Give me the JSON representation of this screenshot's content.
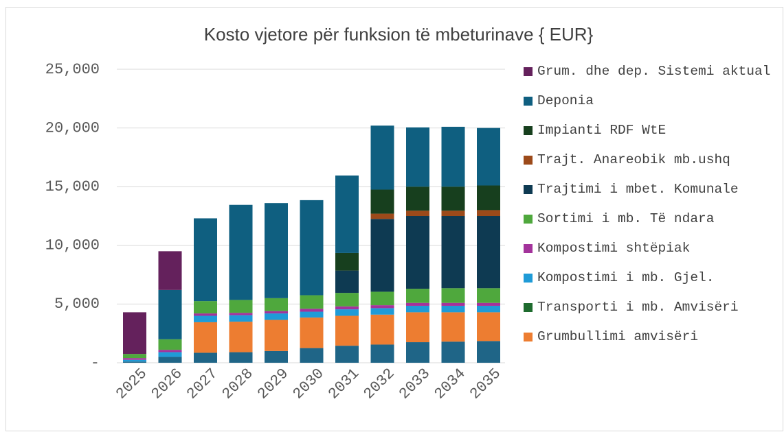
{
  "chart_data": {
    "type": "bar",
    "stacked": true,
    "title": "Kosto vjetore për funksion të mbeturinave { EUR}",
    "categories": [
      "2025",
      "2026",
      "2027",
      "2028",
      "2029",
      "2030",
      "2031",
      "2032",
      "2033",
      "2034",
      "2035"
    ],
    "ylim": [
      0,
      25000
    ],
    "yticks": [
      {
        "value": 0,
        "label": "-"
      },
      {
        "value": 5000,
        "label": "5,000"
      },
      {
        "value": 10000,
        "label": "10,000"
      },
      {
        "value": 15000,
        "label": "15,000"
      },
      {
        "value": 20000,
        "label": "20,000"
      },
      {
        "value": 25000,
        "label": "25,000"
      }
    ],
    "grid": true,
    "series": [
      {
        "color": "#1f6587",
        "values": [
          100,
          500,
          850,
          900,
          1000,
          1250,
          1450,
          1550,
          1750,
          1800,
          1850
        ]
      },
      {
        "name": "Grumbullimi amvisëri",
        "color": "#ed7d31",
        "values": [
          0,
          0,
          2600,
          2600,
          2650,
          2600,
          2550,
          2550,
          2550,
          2500,
          2450
        ]
      },
      {
        "name": "Transporti i mb. Amvisëri",
        "color": "#1e6b2e",
        "values": [
          0,
          0,
          0,
          0,
          0,
          0,
          0,
          0,
          0,
          0,
          0
        ]
      },
      {
        "name": "Kompostimi i mb. Gjel.",
        "color": "#1f9bd7",
        "values": [
          150,
          400,
          550,
          550,
          550,
          500,
          550,
          550,
          550,
          550,
          550
        ]
      },
      {
        "name": "Kompostimi shtëpiak",
        "color": "#a3339b",
        "values": [
          150,
          200,
          200,
          200,
          200,
          250,
          250,
          250,
          250,
          250,
          250
        ]
      },
      {
        "name": "Sortimi i mb. Të ndara",
        "color": "#4fa83d",
        "values": [
          350,
          900,
          1050,
          1100,
          1100,
          1150,
          1150,
          1150,
          1200,
          1250,
          1250
        ]
      },
      {
        "name": "Trajtimi i mbet. Komunale",
        "color": "#0e3a52",
        "values": [
          0,
          0,
          0,
          0,
          0,
          0,
          1900,
          6200,
          6200,
          6150,
          6150
        ]
      },
      {
        "name": "Trajt. Anareobik mb.ushq",
        "color": "#9c4a1a",
        "values": [
          0,
          0,
          0,
          0,
          0,
          0,
          0,
          450,
          450,
          450,
          500
        ]
      },
      {
        "name": "Impianti RDF WtE",
        "color": "#173f1e",
        "values": [
          0,
          0,
          0,
          0,
          0,
          0,
          1500,
          2050,
          2050,
          2050,
          2100
        ]
      },
      {
        "name": "Deponia",
        "color": "#0f5f80",
        "values": [
          0,
          4200,
          7050,
          8100,
          8100,
          8100,
          6600,
          5450,
          5050,
          5100,
          4900
        ]
      },
      {
        "name": "Grum. dhe dep. Sistemi aktual",
        "color": "#64215c",
        "values": [
          3550,
          3300,
          0,
          0,
          0,
          0,
          0,
          0,
          0,
          0,
          0
        ]
      }
    ]
  }
}
